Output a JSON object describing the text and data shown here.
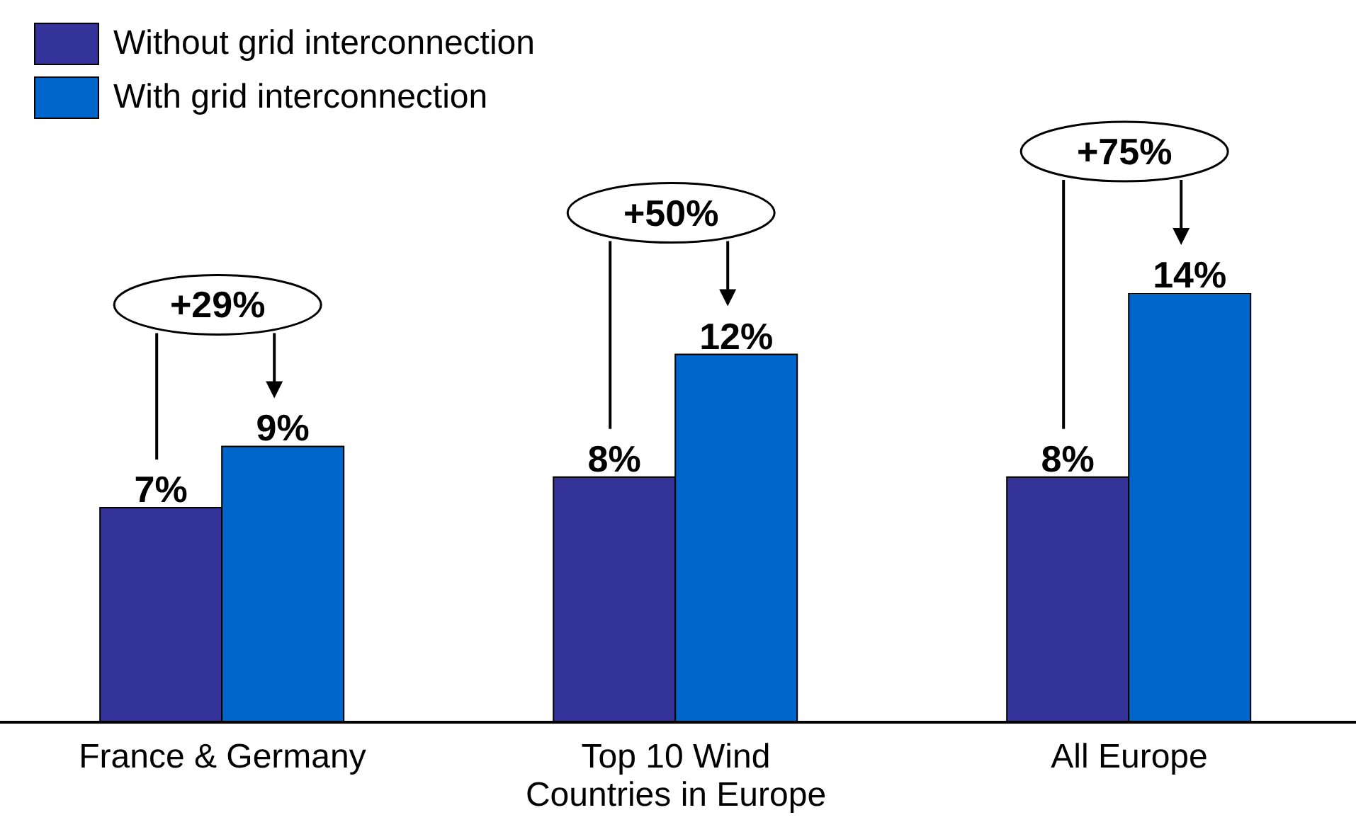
{
  "chart_data": {
    "type": "bar",
    "categories": [
      "France & Germany",
      "Top 10 Wind Countries in Europe",
      "All Europe"
    ],
    "series": [
      {
        "name": "Without grid interconnection",
        "color": "#333399",
        "values": [
          7,
          8,
          8
        ],
        "value_labels": [
          "7%",
          "8%",
          "8%"
        ]
      },
      {
        "name": "With grid interconnection",
        "color": "#0066cc",
        "values": [
          9,
          12,
          14
        ],
        "value_labels": [
          "9%",
          "12%",
          "14%"
        ]
      }
    ],
    "annotations": [
      "+29%",
      "+50%",
      "+75%"
    ],
    "legend": "top left",
    "grid": false
  }
}
